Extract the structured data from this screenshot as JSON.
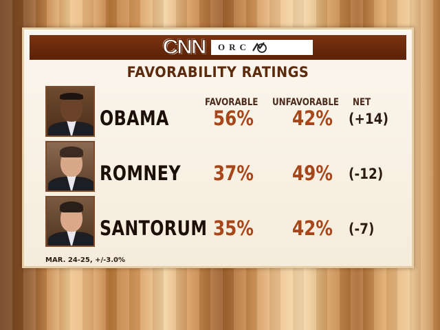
{
  "header": {
    "network_logo": "CNN",
    "partner_logo": "ORC",
    "title": "FAVORABILITY RATINGS"
  },
  "columns": {
    "favorable": "FAVORABLE",
    "unfavorable": "UNFAVORABLE",
    "net": "NET"
  },
  "rows": [
    {
      "name": "OBAMA",
      "favorable": "56%",
      "unfavorable": "42%",
      "net": "(+14)",
      "photo_icon": "obama-portrait-icon"
    },
    {
      "name": "ROMNEY",
      "favorable": "37%",
      "unfavorable": "49%",
      "net": "(-12)",
      "photo_icon": "romney-portrait-icon"
    },
    {
      "name": "SANTORUM",
      "favorable": "35%",
      "unfavorable": "42%",
      "net": "(-7)",
      "photo_icon": "santorum-portrait-icon"
    }
  ],
  "footnote": "MAR. 24-25, +/-3.0%",
  "colors": {
    "banner": "#5a2206",
    "percent": "#a6461b",
    "name": "#1b0f08",
    "title": "#5c2a0d"
  },
  "chart_data": {
    "type": "table",
    "title": "FAVORABILITY RATINGS",
    "columns": [
      "FAVORABLE",
      "UNFAVORABLE",
      "NET"
    ],
    "categories": [
      "OBAMA",
      "ROMNEY",
      "SANTORUM"
    ],
    "series": [
      {
        "name": "FAVORABLE",
        "values": [
          56,
          37,
          35
        ]
      },
      {
        "name": "UNFAVORABLE",
        "values": [
          42,
          49,
          42
        ]
      },
      {
        "name": "NET",
        "values": [
          14,
          -12,
          -7
        ]
      }
    ],
    "annotations": [
      "MAR. 24-25, +/-3.0%"
    ]
  }
}
